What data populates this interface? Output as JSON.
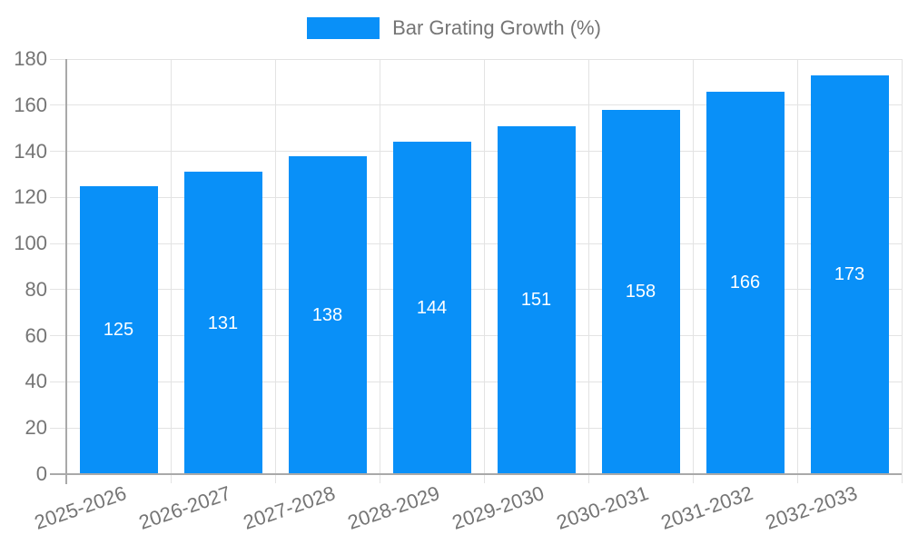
{
  "legend": {
    "items": [
      {
        "label": "Bar Grating Growth (%)"
      }
    ]
  },
  "chart_data": {
    "type": "bar",
    "title": "Bar Grating Growth (%)",
    "categories": [
      "2025-2026",
      "2026-2027",
      "2027-2028",
      "2028-2029",
      "2029-2030",
      "2030-2031",
      "2031-2032",
      "2032-2033"
    ],
    "series": [
      {
        "name": "Bar Grating Growth (%)",
        "values": [
          125,
          131,
          138,
          144,
          151,
          158,
          166,
          173
        ]
      }
    ],
    "values": [
      125,
      131,
      138,
      144,
      151,
      158,
      166,
      173
    ],
    "bar_value_labels": [
      "125",
      "131",
      "138",
      "144",
      "151",
      "158",
      "166",
      "173"
    ],
    "xlabel": "",
    "ylabel": "",
    "ylim": [
      0,
      180
    ],
    "yticks": [
      0,
      20,
      40,
      60,
      80,
      100,
      120,
      140,
      160,
      180
    ],
    "grid": true,
    "legend_position": "top-center",
    "bar_label_position": "inside-middle",
    "colors": {
      "bar": "#0990F8",
      "bar_label_text": "#FFFFFF",
      "axis_text": "#757575",
      "axis_line": "#A9A9A9",
      "gridline": "#E3E3E3",
      "background": "#FFFFFF"
    }
  }
}
